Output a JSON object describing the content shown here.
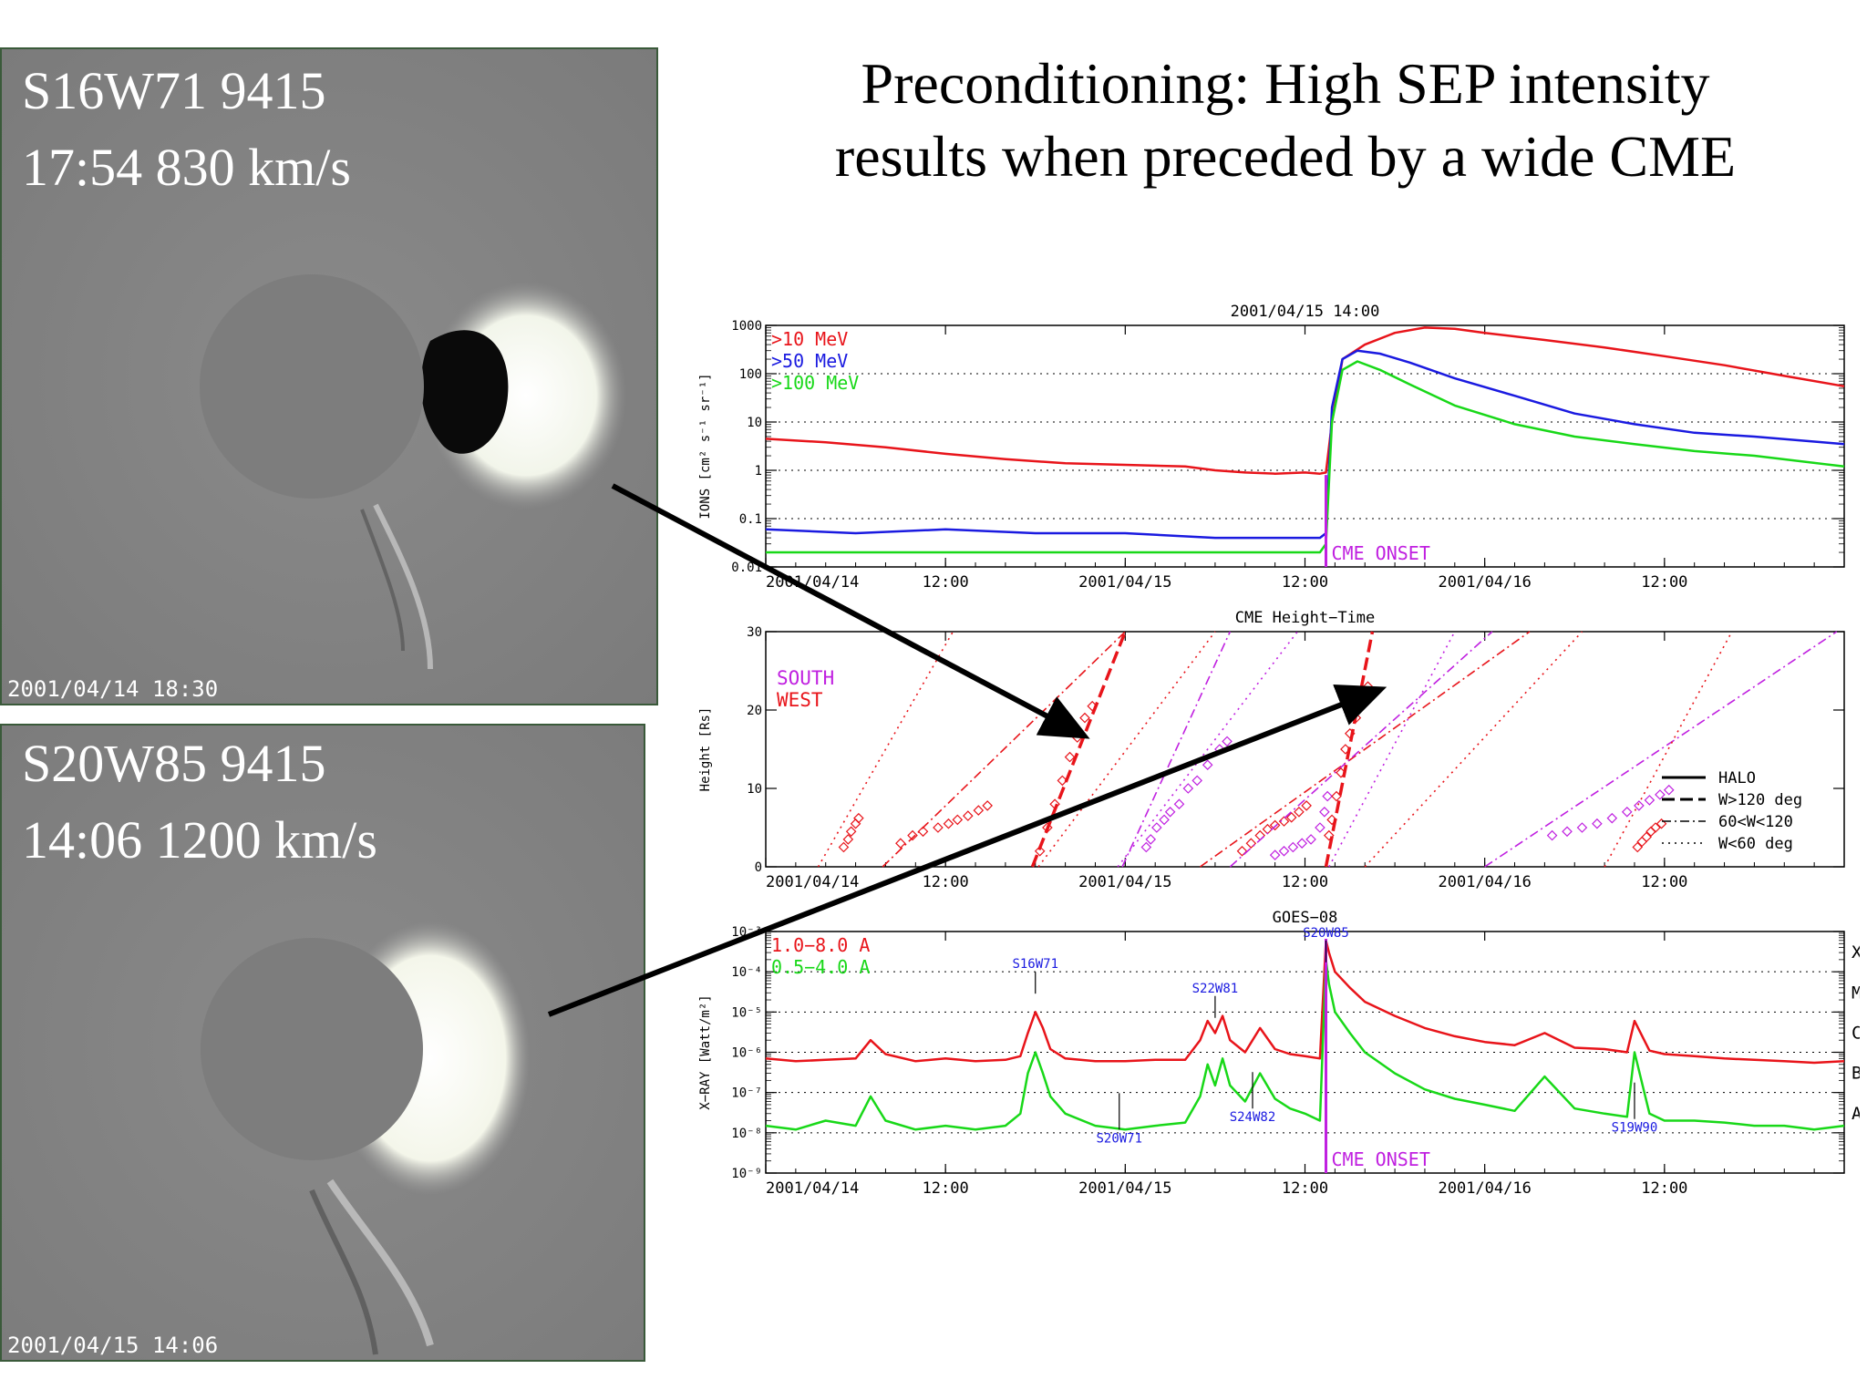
{
  "slide": {
    "title_line1": "Preconditioning: High SEP intensity",
    "title_line2": "results when preceded by a wide CME"
  },
  "images": [
    {
      "caption_line1": "S16W71 9415",
      "caption_line2": "17:54 830 km/s",
      "timestamp": "2001/04/14 18:30"
    },
    {
      "caption_line1": "S20W85  9415",
      "caption_line2": "14:06 1200 km/s",
      "timestamp": "2001/04/15 14:06"
    }
  ],
  "colors": {
    "red": "#e8141a",
    "blue": "#1a1ae0",
    "green": "#18d818",
    "magenta": "#c020e0",
    "arrow": "#000000"
  },
  "chart_data": [
    {
      "type": "line",
      "title": "2001/04/15 14:00",
      "ylabel": "IONS [cm² s⁻¹ sr⁻¹]",
      "yscale": "log",
      "ylim": [
        0.01,
        1000
      ],
      "ytick_labels": [
        "0.01",
        "0.1",
        "1",
        "10",
        "100",
        "1000"
      ],
      "xlim": [
        0,
        72
      ],
      "x_unit": "hours since 2001/04/14 00:00",
      "xtick_labels": [
        {
          "x": 0,
          "label": "2001/04/14"
        },
        {
          "x": 12,
          "label": "12:00"
        },
        {
          "x": 24,
          "label": "2001/04/15"
        },
        {
          "x": 36,
          "label": "12:00"
        },
        {
          "x": 48,
          "label": "2001/04/16"
        },
        {
          "x": 60,
          "label": "12:00"
        }
      ],
      "annotation": {
        "text": "CME ONSET",
        "x": 37.4
      },
      "series": [
        {
          "name": ">10 MeV",
          "color": "red",
          "x": [
            0,
            4,
            8,
            12,
            16,
            20,
            24,
            28,
            30,
            32,
            34,
            36,
            37,
            37.4,
            37.8,
            38.5,
            40,
            42,
            44,
            46,
            48,
            52,
            56,
            60,
            64,
            68,
            72
          ],
          "y": [
            4.5,
            3.8,
            3.0,
            2.2,
            1.7,
            1.4,
            1.3,
            1.2,
            1.0,
            0.9,
            0.85,
            0.9,
            0.85,
            0.9,
            10,
            200,
            400,
            700,
            900,
            850,
            700,
            500,
            350,
            230,
            150,
            90,
            55
          ]
        },
        {
          "name": ">50 MeV",
          "color": "blue",
          "x": [
            0,
            6,
            12,
            18,
            24,
            30,
            34,
            36,
            37,
            37.4,
            37.8,
            38.5,
            39.5,
            41,
            43,
            46,
            50,
            54,
            58,
            62,
            66,
            72
          ],
          "y": [
            0.06,
            0.05,
            0.06,
            0.05,
            0.05,
            0.04,
            0.04,
            0.04,
            0.04,
            0.05,
            20,
            200,
            300,
            260,
            170,
            80,
            35,
            15,
            9,
            6,
            5,
            3.5
          ]
        },
        {
          "name": ">100 MeV",
          "color": "green",
          "x": [
            0,
            6,
            12,
            18,
            24,
            30,
            34,
            36,
            37,
            37.4,
            37.8,
            38.5,
            39.5,
            41,
            43,
            46,
            50,
            54,
            58,
            62,
            66,
            72
          ],
          "y": [
            0.02,
            0.02,
            0.02,
            0.02,
            0.02,
            0.02,
            0.02,
            0.02,
            0.02,
            0.03,
            10,
            120,
            180,
            120,
            60,
            22,
            9,
            5,
            3.5,
            2.5,
            2,
            1.2
          ]
        }
      ]
    },
    {
      "type": "scatter",
      "title": "CME Height−Time",
      "ylabel": "Height [Rs]",
      "ylim": [
        0,
        30
      ],
      "ytick_labels": [
        "0",
        "10",
        "20",
        "30"
      ],
      "xlim": [
        0,
        72
      ],
      "x_unit": "hours since 2001/04/14 00:00",
      "xtick_labels": [
        {
          "x": 0,
          "label": "2001/04/14"
        },
        {
          "x": 12,
          "label": "12:00"
        },
        {
          "x": 24,
          "label": "2001/04/15"
        },
        {
          "x": 36,
          "label": "12:00"
        },
        {
          "x": 48,
          "label": "2001/04/16"
        },
        {
          "x": 60,
          "label": "12:00"
        }
      ],
      "region_labels": [
        {
          "text": "SOUTH",
          "color": "magenta"
        },
        {
          "text": "WEST",
          "color": "red"
        }
      ],
      "legend": [
        "HALO",
        "W>120 deg",
        "60<W<120",
        "W<60 deg"
      ],
      "legend_position": "bottom-right",
      "cmes": [
        {
          "color": "red",
          "style": "dotted",
          "fit": [
            [
              3.5,
              0
            ],
            [
              12.5,
              30
            ]
          ],
          "points": [
            [
              5.2,
              2.5
            ],
            [
              5.5,
              3.5
            ],
            [
              5.7,
              4.5
            ],
            [
              6.0,
              5.5
            ],
            [
              6.2,
              6.2
            ]
          ]
        },
        {
          "color": "red",
          "style": "dashdot",
          "fit": [
            [
              7.8,
              0
            ],
            [
              24,
              30
            ]
          ],
          "points": [
            [
              9,
              3
            ],
            [
              9.8,
              4
            ],
            [
              10.5,
              4.5
            ],
            [
              11.5,
              5
            ],
            [
              12.2,
              5.5
            ],
            [
              12.8,
              6
            ],
            [
              13.5,
              6.5
            ],
            [
              14.2,
              7.2
            ],
            [
              14.8,
              7.8
            ]
          ]
        },
        {
          "color": "red",
          "style": "dashed",
          "fit": [
            [
              17.8,
              0
            ],
            [
              24,
              30
            ]
          ],
          "points": [
            [
              18.3,
              2
            ],
            [
              18.8,
              5
            ],
            [
              19.3,
              8
            ],
            [
              19.8,
              11
            ],
            [
              20.3,
              14
            ],
            [
              20.8,
              16.5
            ],
            [
              21.3,
              19
            ],
            [
              21.8,
              20.5
            ]
          ]
        },
        {
          "color": "red",
          "style": "dotted",
          "fit": [
            [
              18.2,
              0
            ],
            [
              30,
              30
            ]
          ],
          "points": []
        },
        {
          "color": "magenta",
          "style": "dashdot",
          "fit": [
            [
              23.8,
              0
            ],
            [
              31,
              30
            ]
          ],
          "points": []
        },
        {
          "color": "magenta",
          "style": "dotted",
          "fit": [
            [
              23.5,
              0
            ],
            [
              35.5,
              30
            ]
          ],
          "points": [
            [
              25.4,
              2.5
            ],
            [
              25.7,
              3.5
            ],
            [
              26.1,
              5
            ],
            [
              26.6,
              6
            ],
            [
              27,
              7
            ],
            [
              27.6,
              8
            ],
            [
              28.2,
              10
            ],
            [
              28.8,
              11
            ],
            [
              29.5,
              13
            ],
            [
              30.3,
              15
            ],
            [
              30.8,
              16
            ]
          ]
        },
        {
          "color": "red",
          "style": "dashdot",
          "fit": [
            [
              29,
              0
            ],
            [
              51,
              30
            ]
          ],
          "points": [
            [
              31.8,
              2
            ],
            [
              32.4,
              3
            ],
            [
              33,
              4
            ],
            [
              33.5,
              4.8
            ],
            [
              34,
              5.3
            ],
            [
              34.6,
              5.8
            ],
            [
              35.1,
              6.3
            ],
            [
              35.6,
              7
            ],
            [
              36.1,
              7.8
            ]
          ]
        },
        {
          "color": "magenta",
          "style": "dashdot",
          "fit": [
            [
              31,
              0
            ],
            [
              48.5,
              30
            ]
          ],
          "points": [
            [
              34,
              1.5
            ],
            [
              34.6,
              2
            ],
            [
              35.2,
              2.5
            ],
            [
              35.8,
              3
            ],
            [
              36.4,
              3.5
            ],
            [
              37,
              5
            ],
            [
              37.3,
              7
            ],
            [
              37.5,
              9
            ]
          ]
        },
        {
          "color": "red",
          "style": "dashed",
          "fit": [
            [
              37.4,
              0
            ],
            [
              40.5,
              30
            ]
          ],
          "points": [
            [
              37.6,
              4
            ],
            [
              37.8,
              6
            ],
            [
              38.1,
              9
            ],
            [
              38.4,
              12
            ],
            [
              38.7,
              15
            ],
            [
              39,
              17
            ],
            [
              39.4,
              19
            ],
            [
              39.9,
              21.5
            ],
            [
              40.2,
              23
            ]
          ]
        },
        {
          "color": "magenta",
          "style": "dotted",
          "fit": [
            [
              37.6,
              0
            ],
            [
              46,
              30
            ]
          ],
          "points": []
        },
        {
          "color": "red",
          "style": "dotted",
          "fit": [
            [
              40,
              0
            ],
            [
              54.5,
              30
            ]
          ],
          "points": []
        },
        {
          "color": "magenta",
          "style": "dashdot",
          "fit": [
            [
              48,
              0
            ],
            [
              71.5,
              30
            ]
          ],
          "points": [
            [
              52.5,
              4
            ],
            [
              53.5,
              4.5
            ],
            [
              54.5,
              5
            ],
            [
              55.5,
              5.5
            ],
            [
              56.5,
              6.2
            ],
            [
              57.5,
              7
            ],
            [
              58.3,
              7.8
            ],
            [
              59,
              8.5
            ],
            [
              59.7,
              9.2
            ],
            [
              60.3,
              9.8
            ]
          ]
        },
        {
          "color": "red",
          "style": "dotted",
          "fit": [
            [
              56,
              0
            ],
            [
              64.5,
              30
            ]
          ],
          "points": [
            [
              58.2,
              2.5
            ],
            [
              58.5,
              3.2
            ],
            [
              58.8,
              3.8
            ],
            [
              59.1,
              4.5
            ],
            [
              59.4,
              5
            ],
            [
              59.8,
              5.5
            ]
          ]
        }
      ]
    },
    {
      "type": "line",
      "title": "GOES−08",
      "ylabel": "X−RAY [Watt/m²]",
      "yscale": "log",
      "ylim": [
        1e-09,
        0.001
      ],
      "ytick_labels": [
        "10⁻⁹",
        "10⁻⁸",
        "10⁻⁷",
        "10⁻⁶",
        "10⁻⁵",
        "10⁻⁴",
        "10⁻³"
      ],
      "class_labels": [
        "A",
        "B",
        "C",
        "M",
        "X"
      ],
      "xlim": [
        0,
        72
      ],
      "x_unit": "hours since 2001/04/14 00:00",
      "xtick_labels": [
        {
          "x": 0,
          "label": "2001/04/14"
        },
        {
          "x": 12,
          "label": "12:00"
        },
        {
          "x": 24,
          "label": "2001/04/15"
        },
        {
          "x": 36,
          "label": "12:00"
        },
        {
          "x": 48,
          "label": "2001/04/16"
        },
        {
          "x": 60,
          "label": "12:00"
        }
      ],
      "annotation": {
        "text": "CME ONSET",
        "x": 37.4
      },
      "flare_labels": [
        {
          "text": "S16W71",
          "x": 18.0,
          "level": 0.0001
        },
        {
          "text": "S22W81",
          "x": 30.0,
          "level": 2.5e-05
        },
        {
          "text": "S20W85",
          "x": 37.4,
          "level": 0.0006
        },
        {
          "text": "S24W82",
          "x": 32.5,
          "level": 4e-08
        },
        {
          "text": "S20W71",
          "x": 23.6,
          "level": 1.2e-08
        },
        {
          "text": "S19W90",
          "x": 58.0,
          "level": 2.2e-08
        }
      ],
      "series": [
        {
          "name": "1.0−8.0 A",
          "color": "red",
          "x": [
            0,
            2,
            4,
            6,
            7,
            8,
            10,
            12,
            14,
            16,
            17,
            17.5,
            18,
            18.5,
            19,
            20,
            22,
            24,
            26,
            28,
            29,
            29.5,
            30,
            30.5,
            31,
            32,
            33,
            34,
            35,
            36,
            37,
            37.4,
            37.6,
            38,
            39,
            40,
            42,
            44,
            46,
            48,
            50,
            52,
            54,
            56,
            57.5,
            58,
            59,
            60,
            62,
            64,
            66,
            68,
            70,
            72
          ],
          "y": [
            7e-07,
            6e-07,
            6.5e-07,
            7e-07,
            2e-06,
            9e-07,
            6e-07,
            7e-07,
            6e-07,
            6.5e-07,
            8e-07,
            3e-06,
            1e-05,
            4e-06,
            1.2e-06,
            7e-07,
            6e-07,
            6e-07,
            6.5e-07,
            6.5e-07,
            2e-06,
            6e-06,
            3e-06,
            8e-06,
            2e-06,
            1e-06,
            4e-06,
            1.2e-06,
            9e-07,
            8e-07,
            7e-07,
            0.0006,
            0.0003,
            0.0001,
            4e-05,
            1.8e-05,
            8e-06,
            4e-06,
            2.5e-06,
            1.8e-06,
            1.5e-06,
            3e-06,
            1.3e-06,
            1.2e-06,
            1e-06,
            6e-06,
            1.1e-06,
            9e-07,
            8e-07,
            7e-07,
            6.5e-07,
            6e-07,
            5.5e-07,
            6e-07
          ]
        },
        {
          "name": "0.5−4.0 A",
          "color": "green",
          "x": [
            0,
            2,
            4,
            6,
            7,
            8,
            10,
            12,
            14,
            16,
            17,
            17.5,
            18,
            18.5,
            19,
            20,
            22,
            24,
            26,
            28,
            29,
            29.5,
            30,
            30.5,
            31,
            32,
            33,
            34,
            35,
            36,
            37,
            37.4,
            37.6,
            38,
            39,
            40,
            42,
            44,
            46,
            48,
            50,
            52,
            54,
            56,
            57.5,
            58,
            59,
            60,
            62,
            64,
            66,
            68,
            70,
            72
          ],
          "y": [
            1.5e-08,
            1.2e-08,
            2e-08,
            1.5e-08,
            8e-08,
            2e-08,
            1.2e-08,
            1.5e-08,
            1.2e-08,
            1.5e-08,
            3e-08,
            3e-07,
            1e-06,
            3e-07,
            8e-08,
            3e-08,
            1.5e-08,
            1.2e-08,
            1.5e-08,
            1.8e-08,
            8e-08,
            5e-07,
            1.5e-07,
            7e-07,
            1.5e-07,
            6e-08,
            3e-07,
            7e-08,
            4e-08,
            3e-08,
            2e-08,
            0.0002,
            5e-05,
            1e-05,
            3e-06,
            1e-06,
            3e-07,
            1.2e-07,
            7e-08,
            5e-08,
            3.5e-08,
            2.5e-07,
            4e-08,
            3e-08,
            2.5e-08,
            1e-06,
            3e-08,
            2e-08,
            2e-08,
            1.8e-08,
            1.5e-08,
            1.5e-08,
            1.2e-08,
            1.5e-08
          ]
        }
      ]
    }
  ]
}
